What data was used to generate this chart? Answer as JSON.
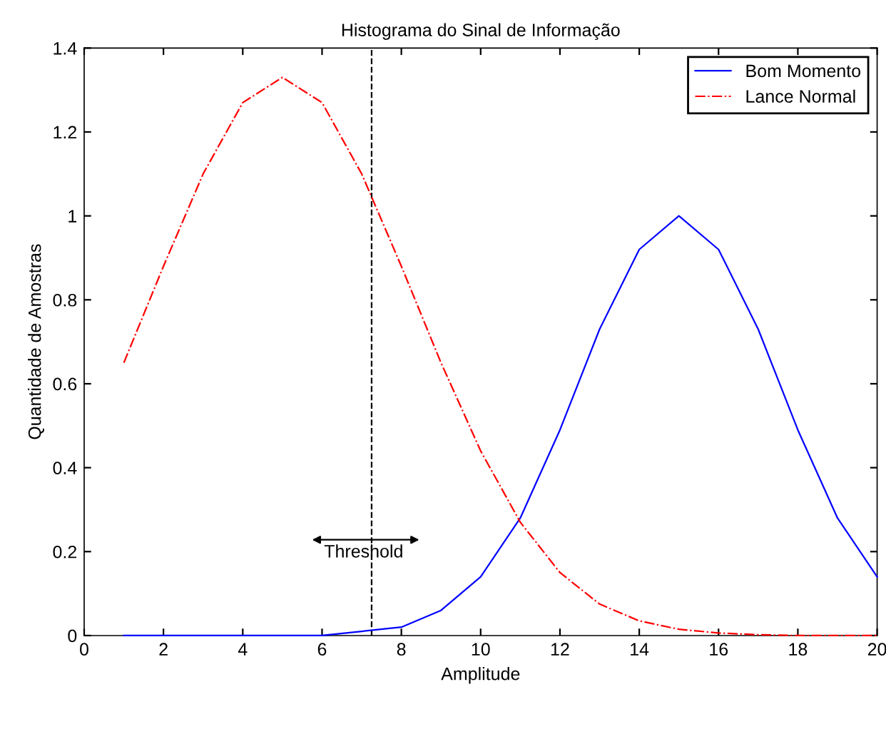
{
  "chart_data": {
    "type": "line",
    "title": "Histograma do Sinal de Informação",
    "xlabel": "Amplitude",
    "ylabel": "Quantidade de Amostras",
    "x": [
      1,
      2,
      3,
      4,
      5,
      6,
      7,
      8,
      9,
      10,
      11,
      12,
      13,
      14,
      15,
      16,
      17,
      18,
      19,
      20
    ],
    "series": [
      {
        "name": "Bom Momento",
        "color": "#0000ff",
        "line_style": "solid",
        "values": [
          0,
          0,
          0,
          0,
          0,
          0,
          0.01,
          0.02,
          0.06,
          0.14,
          0.28,
          0.49,
          0.73,
          0.92,
          1.0,
          0.92,
          0.73,
          0.49,
          0.28,
          0.14
        ]
      },
      {
        "name": "Lance Normal",
        "color": "#ff0000",
        "line_style": "dashdot",
        "values": [
          0.65,
          0.88,
          1.1,
          1.27,
          1.33,
          1.27,
          1.1,
          0.88,
          0.65,
          0.44,
          0.27,
          0.15,
          0.075,
          0.035,
          0.015,
          0.006,
          0.002,
          0,
          0,
          0
        ]
      }
    ],
    "xlim": [
      0,
      20
    ],
    "xticks": [
      0,
      2,
      4,
      6,
      8,
      10,
      12,
      14,
      16,
      18,
      20
    ],
    "ylim": [
      0,
      1.4
    ],
    "yticks": [
      0,
      0.2,
      0.4,
      0.6,
      0.8,
      1,
      1.2,
      1.4
    ],
    "ref_lines": [
      {
        "axis": "x",
        "value": 7.25,
        "color": "#000000",
        "line_style": "dashed"
      }
    ],
    "annotations": [
      "Threshold"
    ],
    "legend": "top right",
    "grid": false,
    "marker": "none"
  }
}
